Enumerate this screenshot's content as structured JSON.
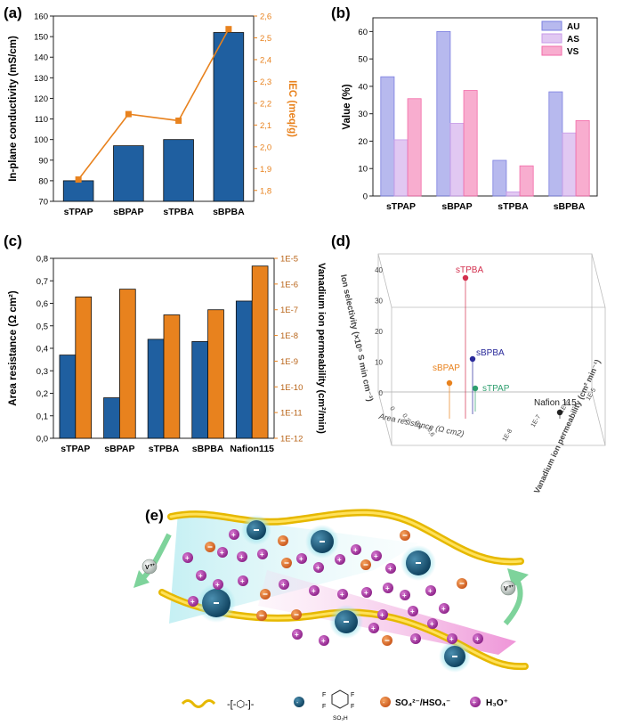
{
  "chart_data": [
    {
      "panel": "(a)",
      "type": "bar+line",
      "categories": [
        "sTPAP",
        "sBPAP",
        "sTPBA",
        "sBPBA"
      ],
      "series": [
        {
          "name": "In-plane conductivity",
          "axis": "left",
          "values": [
            80,
            97,
            100,
            152
          ]
        },
        {
          "name": "IEC",
          "axis": "right",
          "values": [
            1.85,
            2.15,
            2.12,
            2.54
          ]
        }
      ],
      "ylabel": "In-plane conductivity (mS/cm)",
      "y2label": "IEC (meq/g)",
      "ylim": [
        70,
        160
      ],
      "y2lim": [
        1.75,
        2.6
      ],
      "yticks": [
        "70",
        "80",
        "90",
        "100",
        "110",
        "120",
        "130",
        "140",
        "150",
        "160"
      ],
      "y2ticks": [
        "1,8",
        "1,9",
        "2,0",
        "2,1",
        "2,2",
        "2,3",
        "2,4",
        "2,5",
        "2,6"
      ],
      "colors": {
        "bar": "#1f5fa0",
        "line": "#e8821e"
      }
    },
    {
      "panel": "(b)",
      "type": "bar",
      "categories": [
        "sTPAP",
        "sBPAP",
        "sTPBA",
        "sBPBA"
      ],
      "series": [
        {
          "name": "AU",
          "values": [
            43.5,
            60.0,
            13.0,
            38.0
          ],
          "color": "#7b7fe0"
        },
        {
          "name": "AS",
          "values": [
            20.5,
            26.5,
            1.5,
            23.0
          ],
          "color": "#c89ae8"
        },
        {
          "name": "VS",
          "values": [
            35.5,
            38.5,
            11.0,
            27.5
          ],
          "color": "#f26aa8"
        }
      ],
      "ylabel": "Value (%)",
      "ylim": [
        0,
        65
      ],
      "yticks": [
        "0",
        "10",
        "20",
        "30",
        "40",
        "50",
        "60"
      ]
    },
    {
      "panel": "(c)",
      "type": "bar",
      "categories": [
        "sTPAP",
        "sBPAP",
        "sTPBA",
        "sBPBA",
        "Nafion115"
      ],
      "series": [
        {
          "name": "Area resistance",
          "axis": "left",
          "values": [
            0.37,
            0.18,
            0.44,
            0.43,
            0.61
          ],
          "color": "#1f5fa0"
        },
        {
          "name": "Vanadium ion permeability (exponent)",
          "axis": "right",
          "values": [
            -6.5,
            -6.2,
            -7.2,
            -7.0,
            -5.3
          ],
          "color": "#e8821e"
        }
      ],
      "ylabel": "Area resistance (Ω cm²)",
      "y2label": "Vanadium ion permeability (cm²/min)",
      "ylim": [
        0,
        0.8
      ],
      "y2lim": [
        -12,
        -5
      ],
      "yticks": [
        "0,0",
        "0,1",
        "0,2",
        "0,3",
        "0,4",
        "0,5",
        "0,6",
        "0,7",
        "0,8"
      ],
      "y2ticks": [
        "1E-12",
        "1E-11",
        "1E-10",
        "1E-9",
        "1E-8",
        "1E-7",
        "1E-6",
        "1E-5"
      ]
    },
    {
      "panel": "(d)",
      "type": "scatter3d",
      "xlabel": "Area resistance (Ω cm2)",
      "ylabel": "Vanadium ion permeability (cm² min⁻¹)",
      "zlabel": "Ion selectivity (×10⁵ S min cm⁻³)",
      "zticks": [
        "0",
        "10",
        "20",
        "30",
        "40"
      ],
      "xticks": [
        "0",
        "0,2",
        "0,4",
        "0,6"
      ],
      "yticks": [
        "1E-8",
        "1E-7",
        "1E-6",
        "1E-5"
      ],
      "points": [
        {
          "label": "sTPBA",
          "z": 43,
          "color": "#d3304e"
        },
        {
          "label": "sBPAP",
          "z": 10,
          "color": "#e8821e"
        },
        {
          "label": "sBPBA",
          "z": 18,
          "color": "#2a2a9a"
        },
        {
          "label": "sTPAP",
          "z": 8,
          "color": "#2e9e6e"
        },
        {
          "label": "Nafion 115",
          "z": 2,
          "color": "#222222"
        }
      ]
    }
  ],
  "panel_e": {
    "label": "(e)",
    "ion_label": "V",
    "ion_sup": "n+",
    "legend": {
      "sulfate": "SO₄²⁻/HSO₄⁻",
      "hydronium": "H₃O⁺",
      "group_sub": "SO₃H",
      "group_letters": [
        "F",
        "F",
        "F",
        "F"
      ]
    }
  }
}
